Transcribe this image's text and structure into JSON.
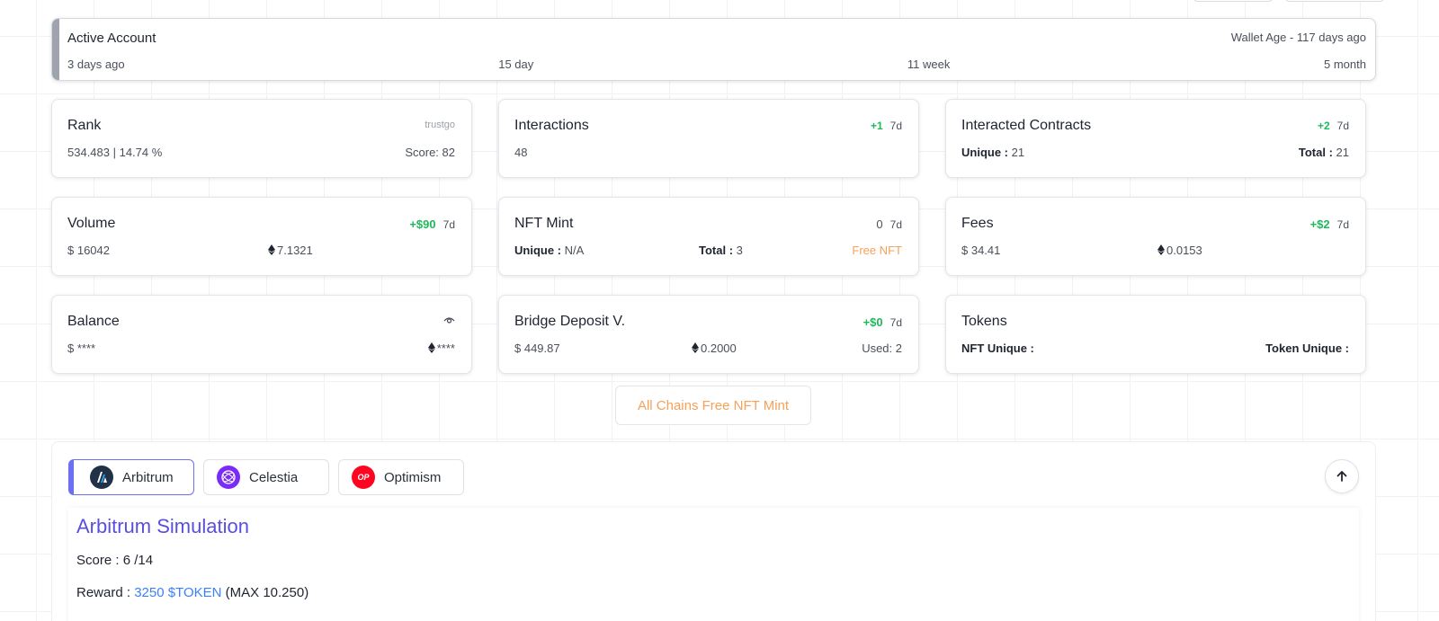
{
  "active_account": {
    "title": "Active Account",
    "wallet_age": "Wallet Age - 117 days ago",
    "ticks": [
      "3 days ago",
      "15 day",
      "11 week",
      "5 month"
    ]
  },
  "cards": {
    "rank": {
      "title": "Rank",
      "source": "trustgo",
      "value": "534.483 | 14.74 %",
      "score": "Score: 82"
    },
    "interactions": {
      "title": "Interactions",
      "delta": "+1",
      "period": "7d",
      "value": "48"
    },
    "contracts": {
      "title": "Interacted Contracts",
      "delta": "+2",
      "period": "7d",
      "unique_label": "Unique :",
      "unique_value": "21",
      "total_label": "Total :",
      "total_value": "21"
    },
    "volume": {
      "title": "Volume",
      "delta": "+$90",
      "period": "7d",
      "usd": "$ 16042",
      "eth": "7.1321"
    },
    "nft_mint": {
      "title": "NFT Mint",
      "delta": "0",
      "period": "7d",
      "unique_label": "Unique :",
      "unique_value": "N/A",
      "total_label": "Total :",
      "total_value": "3",
      "free": "Free NFT"
    },
    "fees": {
      "title": "Fees",
      "delta": "+$2",
      "period": "7d",
      "usd": "$ 34.41",
      "eth": "0.0153"
    },
    "balance": {
      "title": "Balance",
      "usd": "$ ****",
      "eth": "****"
    },
    "bridge": {
      "title": "Bridge Deposit V.",
      "delta": "+$0",
      "period": "7d",
      "usd": "$ 449.87",
      "eth": "0.2000",
      "used": "Used: 2"
    },
    "tokens": {
      "title": "Tokens",
      "nft_unique": "NFT Unique :",
      "token_unique": "Token Unique :"
    }
  },
  "nft_button": "All Chains Free NFT Mint",
  "chains": {
    "tabs": [
      {
        "label": "Arbitrum",
        "icon": "arbitrum-logo-icon"
      },
      {
        "label": "Celestia",
        "icon": "celestia-logo-icon"
      },
      {
        "label": "Optimism",
        "icon": "optimism-logo-icon",
        "logo_text": "OP"
      }
    ],
    "simulation": {
      "title": "Arbitrum Simulation",
      "score_label": "Score :",
      "score_value": "6 /14",
      "reward_label": "Reward :",
      "reward_value": "3250 $TOKEN",
      "reward_max": "(MAX 10.250)"
    }
  },
  "colors": {
    "green": "#1fb95b",
    "orange": "#f5a15a",
    "accent_purple": "#5a4ee0",
    "link_blue": "#3b82f6",
    "arbitrum_navy": "#213147",
    "celestia_purple": "#7b2bf9",
    "optimism_red": "#ff0420"
  }
}
